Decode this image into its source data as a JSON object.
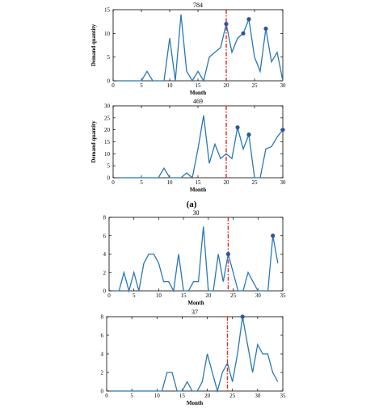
{
  "panel_labels": [
    "(a)"
  ],
  "colors": {
    "line": "#2a78b5",
    "marker": "#2f5597",
    "vline": "#e8231f"
  },
  "chart_data": [
    {
      "type": "line",
      "title": "784",
      "xlabel": "Month",
      "ylabel": "Demand quantity",
      "xlim": [
        0,
        30
      ],
      "ylim": [
        0,
        15
      ],
      "xticks": [
        0,
        5,
        10,
        15,
        20,
        25,
        30
      ],
      "yticks": [
        0,
        5,
        10,
        15
      ],
      "x": [
        1,
        2,
        3,
        4,
        5,
        6,
        7,
        8,
        9,
        10,
        11,
        12,
        13,
        14,
        15,
        16,
        17,
        18,
        19,
        20,
        21,
        22,
        23,
        24,
        25,
        26,
        27,
        28,
        29,
        30
      ],
      "y": [
        0,
        0,
        0,
        0,
        0,
        2,
        0,
        0,
        0,
        9,
        0,
        14,
        2,
        0,
        2,
        0,
        5,
        6,
        7,
        12,
        6,
        9,
        10,
        13,
        5,
        2,
        11,
        4,
        6,
        0
      ],
      "markers": [
        [
          20,
          12
        ],
        [
          23,
          10
        ],
        [
          24,
          13
        ],
        [
          27,
          11
        ]
      ],
      "vline": 20
    },
    {
      "type": "line",
      "title": "469",
      "xlabel": "Month",
      "ylabel": "Demand quantity",
      "xlim": [
        0,
        30
      ],
      "ylim": [
        0,
        30
      ],
      "xticks": [
        0,
        5,
        10,
        15,
        20,
        25,
        30
      ],
      "yticks": [
        0,
        5,
        10,
        15,
        20,
        25,
        30
      ],
      "x": [
        1,
        2,
        3,
        4,
        5,
        6,
        7,
        8,
        9,
        10,
        11,
        12,
        13,
        14,
        15,
        16,
        17,
        18,
        19,
        20,
        21,
        22,
        23,
        24,
        25,
        26,
        27,
        28,
        29,
        30
      ],
      "y": [
        0,
        0,
        0,
        0,
        0,
        0,
        0,
        0,
        4,
        0,
        0,
        0,
        2,
        0,
        12,
        26,
        6,
        14,
        8,
        10,
        8,
        21,
        12,
        18,
        0,
        0,
        12,
        13,
        17,
        20
      ],
      "markers": [
        [
          22,
          21
        ],
        [
          24,
          18
        ],
        [
          30,
          20
        ]
      ],
      "vline": 20
    },
    {
      "type": "line",
      "title": "30",
      "xlabel": "Month",
      "ylabel": "",
      "xlim": [
        0,
        35
      ],
      "ylim": [
        0,
        8
      ],
      "xticks": [
        0,
        5,
        10,
        15,
        20,
        25,
        30,
        35
      ],
      "yticks": [
        0,
        2,
        4,
        6,
        8
      ],
      "x": [
        1,
        2,
        3,
        4,
        5,
        6,
        7,
        8,
        9,
        10,
        11,
        12,
        13,
        14,
        15,
        16,
        17,
        18,
        19,
        20,
        21,
        22,
        23,
        24,
        25,
        26,
        27,
        28,
        29,
        30,
        31,
        32,
        33,
        34
      ],
      "y": [
        0,
        0,
        2,
        0,
        2,
        0,
        3,
        4,
        4,
        3,
        1,
        1,
        0,
        4,
        0,
        0,
        1,
        1,
        7,
        0,
        0,
        4,
        1,
        4,
        2,
        0,
        0,
        2,
        1,
        0,
        0,
        0,
        6,
        3
      ],
      "markers": [
        [
          24,
          4
        ],
        [
          33,
          6
        ]
      ],
      "vline": 24
    },
    {
      "type": "line",
      "title": "37",
      "xlabel": "Month",
      "ylabel": "",
      "xlim": [
        0,
        35
      ],
      "ylim": [
        0,
        8
      ],
      "xticks": [
        0,
        5,
        10,
        15,
        20,
        25,
        30,
        35
      ],
      "yticks": [
        0,
        2,
        4,
        6,
        8
      ],
      "x": [
        1,
        2,
        3,
        4,
        5,
        6,
        7,
        8,
        9,
        10,
        11,
        12,
        13,
        14,
        15,
        16,
        17,
        18,
        19,
        20,
        21,
        22,
        23,
        24,
        25,
        26,
        27,
        28,
        29,
        30,
        31,
        32,
        33,
        34
      ],
      "y": [
        0,
        0,
        0,
        0,
        0,
        0,
        0,
        0,
        0,
        0,
        0,
        2,
        2,
        0,
        0,
        1,
        0,
        0,
        1,
        4,
        2,
        0,
        2,
        3,
        1,
        4,
        8,
        5,
        2,
        5,
        4,
        4,
        2,
        1
      ],
      "markers": [
        [
          27,
          8
        ]
      ],
      "vline": 24
    }
  ]
}
